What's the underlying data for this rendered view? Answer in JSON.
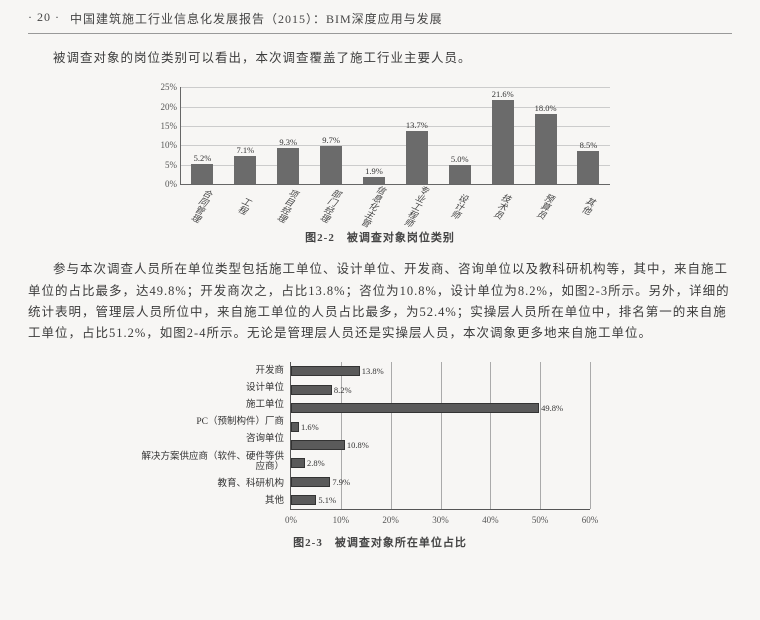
{
  "header": {
    "pageno": "· 20 ·",
    "title": "中国建筑施工行业信息化发展报告（2015）：BIM深度应用与发展"
  },
  "para1": "被调查对象的岗位类别可以看出，本次调查覆盖了施工行业主要人员。",
  "chart1": {
    "type": "bar",
    "ylim": [
      0,
      25
    ],
    "ytick_step": 5,
    "yticks": [
      "0%",
      "5%",
      "10%",
      "15%",
      "20%",
      "25%"
    ],
    "categories": [
      "合同管理",
      "工程",
      "项目经理",
      "部门经理",
      "信息化主管",
      "专业工程师",
      "设计师",
      "技术员",
      "预算员",
      "其他"
    ],
    "values": [
      5.2,
      7.1,
      9.3,
      9.7,
      1.9,
      13.7,
      5.0,
      21.6,
      18.0,
      8.5
    ],
    "value_labels": [
      "5.2%",
      "7.1%",
      "9.3%",
      "9.7%",
      "1.9%",
      "13.7%",
      "5.0%",
      "21.6%",
      "18.0%",
      "8.5%"
    ],
    "bar_color": "#6b6b6b",
    "grid_color": "#cccccc",
    "caption": "图2-2　被调查对象岗位类别"
  },
  "para2": "参与本次调查人员所在单位类型包括施工单位、设计单位、开发商、咨询单位以及教科研机构等，其中，来自施工单位的占比最多，达49.8%；开发商次之，占比13.8%；咨位为10.8%，设计单位为8.2%，如图2-3所示。另外，详细的统计表明，管理层人员所位中，来自施工单位的人员占比最多，为52.4%；实操层人员所在单位中，排名第一的来自施工单位，占比51.2%，如图2-4所示。无论是管理层人员还是实操层人员，本次调象更多地来自施工单位。",
  "chart2": {
    "type": "hbar",
    "xlim": [
      0,
      60
    ],
    "xtick_step": 10,
    "xticks": [
      "0%",
      "10%",
      "20%",
      "30%",
      "40%",
      "50%",
      "60%"
    ],
    "categories": [
      "开发商",
      "设计单位",
      "施工单位",
      "PC（预制构件）厂商",
      "咨询单位",
      "解决方案供应商（软件、硬件等供应商）",
      "教育、科研机构",
      "其他"
    ],
    "values": [
      13.8,
      8.2,
      49.8,
      1.6,
      10.8,
      2.8,
      7.9,
      5.1
    ],
    "value_labels": [
      "13.8%",
      "8.2%",
      "49.8%",
      "1.6%",
      "10.8%",
      "2.8%",
      "7.9%",
      "5.1%"
    ],
    "bar_color": "#5a5a5a",
    "grid_color": "#aaaaaa",
    "caption": "图2-3　被调查对象所在单位占比"
  }
}
